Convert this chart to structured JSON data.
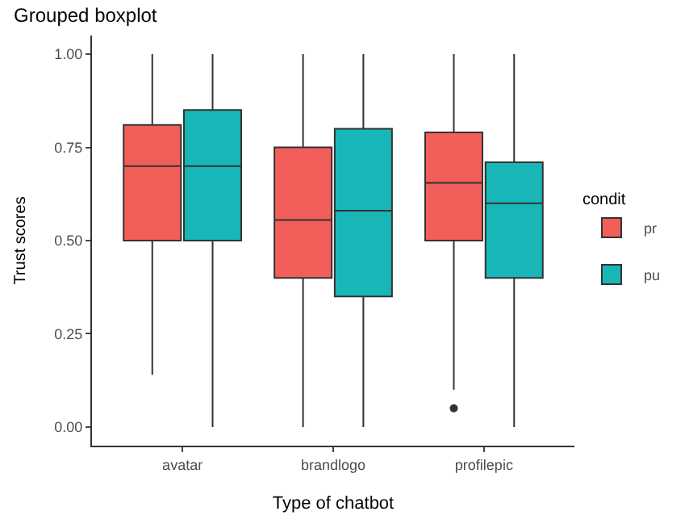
{
  "chart_data": {
    "type": "box",
    "title": "Grouped boxplot",
    "xlabel": "Type of chatbot",
    "ylabel": "Trust scores",
    "legend_title": "condit",
    "legend": "right",
    "categories": [
      "avatar",
      "brandlogo",
      "profilepic"
    ],
    "ylim": [
      -0.05,
      1.05
    ],
    "yticks": [
      {
        "value": 0,
        "label": "0.00"
      },
      {
        "value": 0.25,
        "label": "0.25"
      },
      {
        "value": 0.5,
        "label": "0.50"
      },
      {
        "value": 0.75,
        "label": "0.75"
      },
      {
        "value": 1,
        "label": "1.00"
      }
    ],
    "series": [
      {
        "name": "pr",
        "color": "#f25f5a",
        "boxes": [
          {
            "low": 0.14,
            "q1": 0.5,
            "median": 0.7,
            "q3": 0.81,
            "high": 1.0
          },
          {
            "low": 0,
            "q1": 0.4,
            "median": 0.555,
            "q3": 0.75,
            "high": 1.0
          },
          {
            "low": 0.1,
            "q1": 0.5,
            "median": 0.655,
            "q3": 0.79,
            "high": 1.0,
            "outliers": [
              0.05
            ]
          }
        ]
      },
      {
        "name": "pu",
        "color": "#19b6b8",
        "boxes": [
          {
            "low": 0,
            "q1": 0.5,
            "median": 0.7,
            "q3": 0.85,
            "high": 1.0
          },
          {
            "low": 0,
            "q1": 0.35,
            "median": 0.58,
            "q3": 0.8,
            "high": 1.0
          },
          {
            "low": 0,
            "q1": 0.4,
            "median": 0.6,
            "q3": 0.71,
            "high": 1.0
          }
        ]
      }
    ]
  }
}
